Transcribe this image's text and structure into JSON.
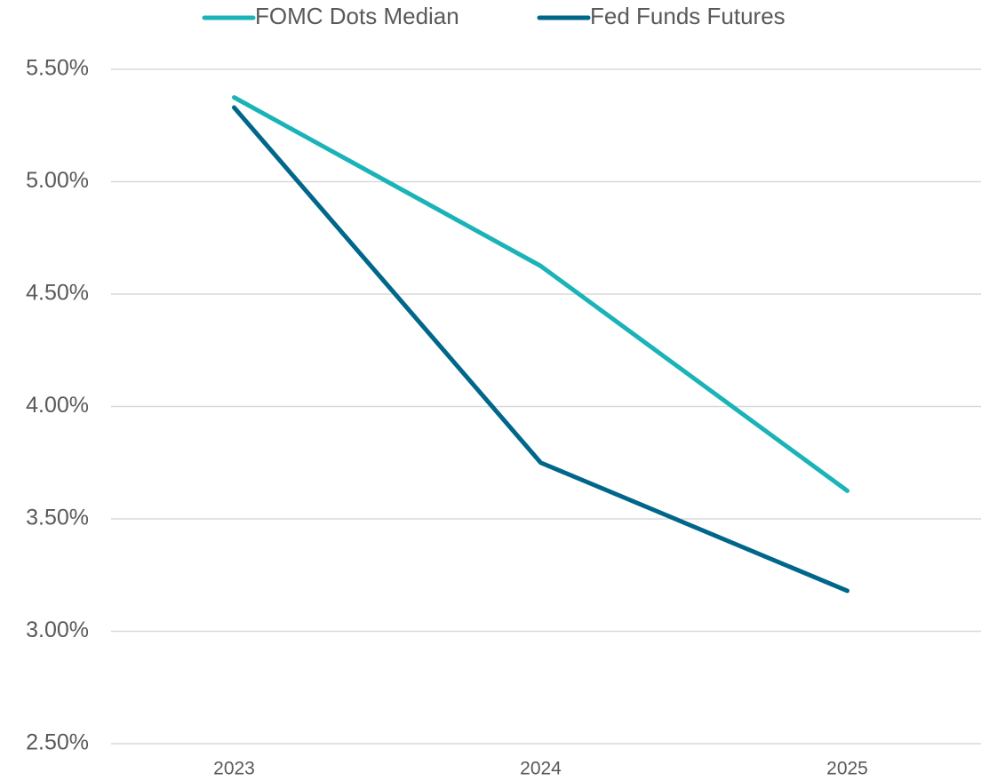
{
  "chart_data": {
    "type": "line",
    "categories": [
      "2023",
      "2024",
      "2025"
    ],
    "series": [
      {
        "name": "FOMC Dots Median",
        "color": "#1ab3b8",
        "values": [
          5.375,
          4.625,
          3.625
        ]
      },
      {
        "name": "Fed Funds Futures",
        "color": "#00678a",
        "values": [
          5.33,
          3.75,
          3.18
        ]
      }
    ],
    "ylim": [
      2.5,
      5.5
    ],
    "yticks": [
      {
        "value": 2.5,
        "label": "2.50%"
      },
      {
        "value": 3.0,
        "label": "3.00%"
      },
      {
        "value": 3.5,
        "label": "3.50%"
      },
      {
        "value": 4.0,
        "label": "4.00%"
      },
      {
        "value": 4.5,
        "label": "4.50%"
      },
      {
        "value": 5.0,
        "label": "5.00%"
      },
      {
        "value": 5.5,
        "label": "5.50%"
      }
    ],
    "grid": true,
    "legend": "top"
  }
}
